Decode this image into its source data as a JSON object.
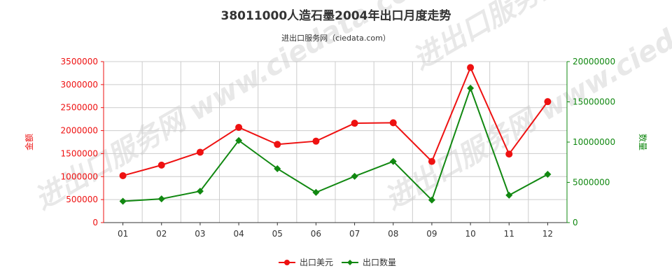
{
  "chart_data": {
    "type": "line",
    "title": "38011000人造石墨2004年出口月度走势",
    "subtitle": "进出口服务网（ciedata.com）",
    "watermark": "进出口服务网 www.ciedata.com",
    "categories": [
      "01",
      "02",
      "03",
      "04",
      "05",
      "06",
      "07",
      "08",
      "09",
      "10",
      "11",
      "12"
    ],
    "series": [
      {
        "name": "出口美元",
        "axis": "left",
        "color": "#ee1111",
        "marker": "circle",
        "values": [
          1020000,
          1250000,
          1530000,
          2070000,
          1700000,
          1770000,
          2160000,
          2170000,
          1330000,
          3370000,
          1490000,
          2630000
        ]
      },
      {
        "name": "出口数量",
        "axis": "right",
        "color": "#118811",
        "marker": "diamond",
        "values": [
          2650000,
          2950000,
          3900000,
          10200000,
          6700000,
          3750000,
          5750000,
          7600000,
          2800000,
          16700000,
          3400000,
          6000000
        ]
      }
    ],
    "y_left": {
      "label": "金额",
      "min": 0,
      "max": 3500000,
      "ticks": [
        "0",
        "500000",
        "1000000",
        "1500000",
        "2000000",
        "2500000",
        "3000000",
        "3500000"
      ],
      "color": "#ee1111"
    },
    "y_right": {
      "label": "数量",
      "min": 0,
      "max": 20000000,
      "ticks": [
        "0",
        "5000000",
        "10000000",
        "15000000",
        "20000000"
      ],
      "color": "#118811"
    },
    "grid": true,
    "legend_position": "bottom"
  }
}
